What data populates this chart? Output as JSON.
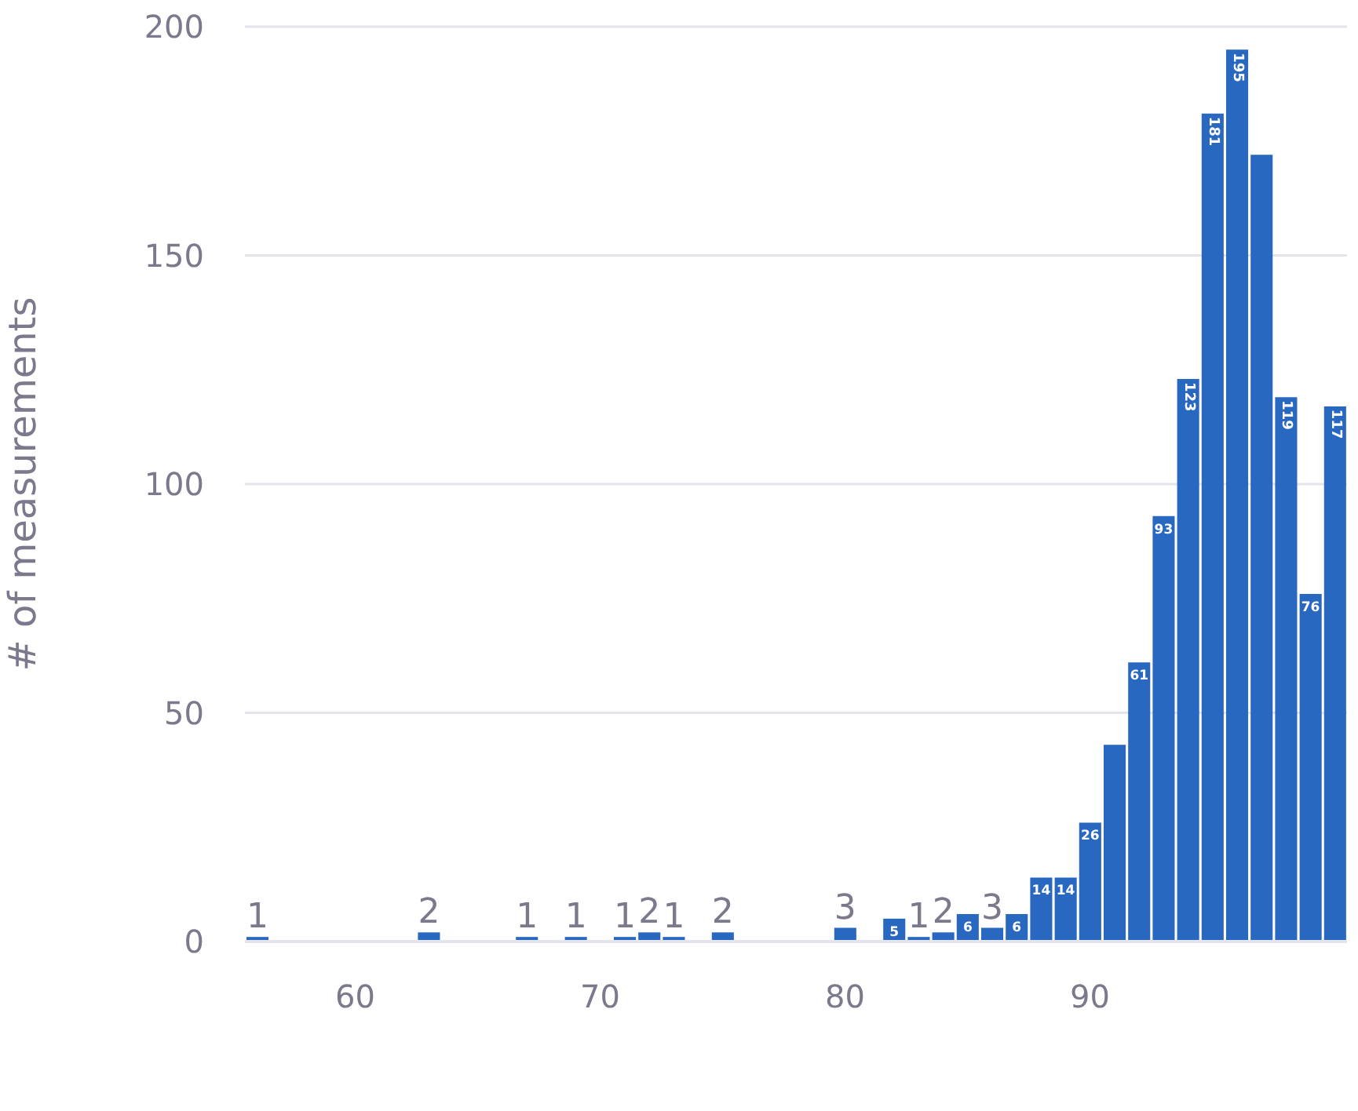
{
  "chart_data": {
    "type": "histogram",
    "ylabel": "# of measurements",
    "bins": [
      55.5,
      56.5,
      57.5,
      58.5,
      59.5,
      60.5,
      61.5,
      62.5,
      63.5,
      64.5,
      65.5,
      66.5,
      67.5,
      68.5,
      69.5,
      70.5,
      71.5,
      72.5,
      73.5,
      74.5,
      75.5,
      76.5,
      77.5,
      78.5,
      79.5,
      80.5,
      81.5,
      82.5,
      83.5,
      84.5,
      85.5,
      86.5,
      87.5,
      88.5,
      89.5,
      90.5,
      91.5,
      92.5,
      93.5,
      94.5,
      95.5,
      96.5,
      97.5,
      98.5,
      99.5,
      100.5
    ],
    "values": [
      1,
      0,
      0,
      0,
      0,
      0,
      0,
      2,
      0,
      0,
      0,
      1,
      0,
      1,
      0,
      1,
      2,
      1,
      0,
      2,
      0,
      0,
      0,
      0,
      3,
      0,
      5,
      1,
      2,
      6,
      3,
      6,
      14,
      14,
      26,
      43,
      61,
      93,
      123,
      181,
      195,
      172,
      119,
      76,
      117
    ],
    "value_labels": [
      "1",
      null,
      null,
      null,
      null,
      null,
      null,
      "2",
      null,
      null,
      null,
      "1",
      null,
      "1",
      null,
      "1",
      "2",
      "1",
      null,
      "2",
      null,
      null,
      null,
      null,
      "3",
      null,
      "5",
      "1",
      "2",
      "6",
      "3",
      "6",
      "14",
      "14",
      "26",
      null,
      "61",
      "93",
      "123",
      "181",
      "195",
      null,
      "119",
      "76",
      "117"
    ],
    "color": "#2868c0",
    "xlim": [
      55.5,
      100.5
    ],
    "xticks": [
      60,
      70,
      80,
      90
    ],
    "ylim": [
      0,
      200
    ],
    "yticks": [
      0,
      50,
      100,
      150,
      200
    ],
    "grid": "y"
  }
}
